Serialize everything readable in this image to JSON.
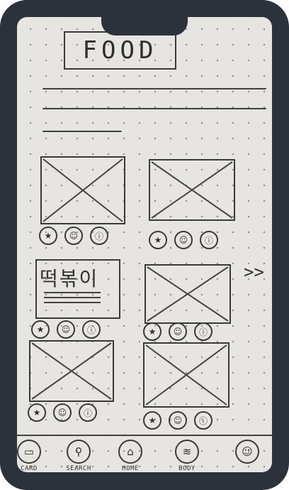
{
  "header": {
    "title": "FOOD"
  },
  "cards": [
    {
      "type": "image",
      "icons": [
        "★",
        "☺",
        "ⓘ"
      ]
    },
    {
      "type": "image",
      "icons": [
        "★",
        "☺",
        "ⓘ"
      ]
    },
    {
      "type": "text",
      "name": "떡볶이",
      "icons": [
        "★",
        "☺",
        "ⓘ"
      ]
    },
    {
      "type": "image",
      "icons": [
        "★",
        "☺",
        "ⓘ"
      ]
    },
    {
      "type": "image",
      "icons": [
        "★",
        "☺",
        "ⓘ"
      ]
    },
    {
      "type": "image",
      "icons": [
        "★",
        "☺",
        "ⓘ"
      ]
    }
  ],
  "next_arrow": ">>",
  "nav": [
    {
      "label": "CARD",
      "icon": "▭"
    },
    {
      "label": "SEARCH",
      "icon": "⚲"
    },
    {
      "label": "HOME",
      "icon": "⌂"
    },
    {
      "label": "BODY",
      "icon": "≋"
    },
    {
      "label": "",
      "icon": "☺"
    }
  ]
}
